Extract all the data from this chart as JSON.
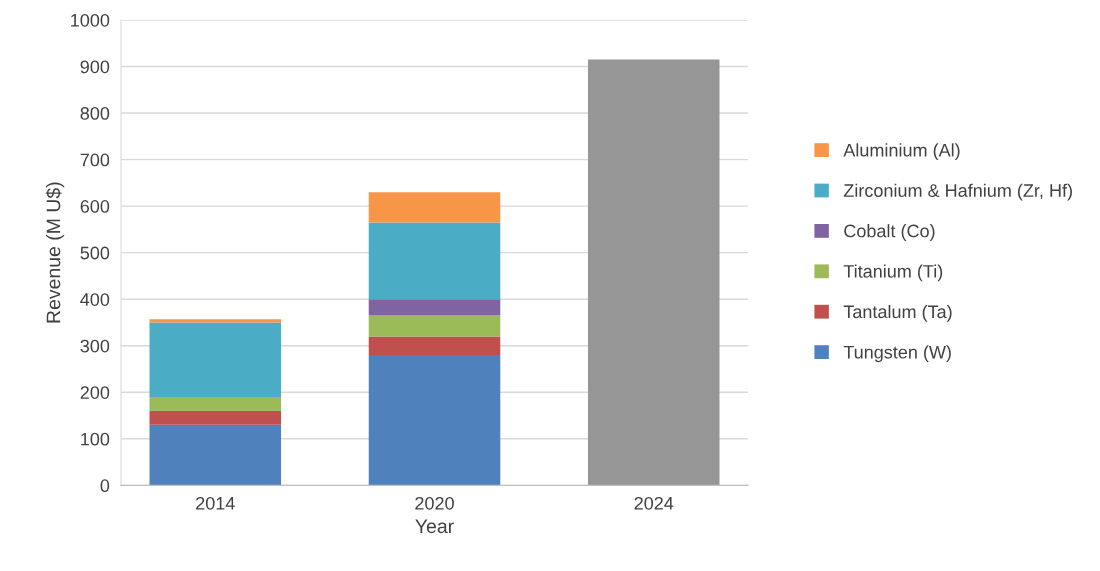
{
  "chart_data": {
    "type": "bar",
    "stacked": true,
    "xlabel": "Year",
    "ylabel": "Revenue (M U$)",
    "categories": [
      "2014",
      "2020",
      "2024"
    ],
    "series": [
      {
        "name": "Tungsten (W)",
        "color": "#4f81bd",
        "values": [
          130,
          280,
          null
        ]
      },
      {
        "name": "Tantalum (Ta)",
        "color": "#c0504d",
        "values": [
          30,
          40,
          null
        ]
      },
      {
        "name": "Titanium (Ti)",
        "color": "#9bbb59",
        "values": [
          30,
          45,
          null
        ]
      },
      {
        "name": "Cobalt (Co)",
        "color": "#8064a2",
        "values": [
          0,
          35,
          null
        ]
      },
      {
        "name": "Zirconium & Hafnium (Zr, Hf)",
        "color": "#4bacc6",
        "values": [
          160,
          165,
          null
        ]
      },
      {
        "name": "Aluminium (Al)",
        "color": "#f79646",
        "values": [
          7,
          65,
          null
        ]
      },
      {
        "color": "#969696",
        "values": [
          null,
          null,
          915
        ]
      }
    ],
    "ylim": [
      0,
      1000
    ],
    "yticks": [
      0,
      100,
      200,
      300,
      400,
      500,
      600,
      700,
      800,
      900,
      1000
    ],
    "grid": "y",
    "legend": "right"
  }
}
